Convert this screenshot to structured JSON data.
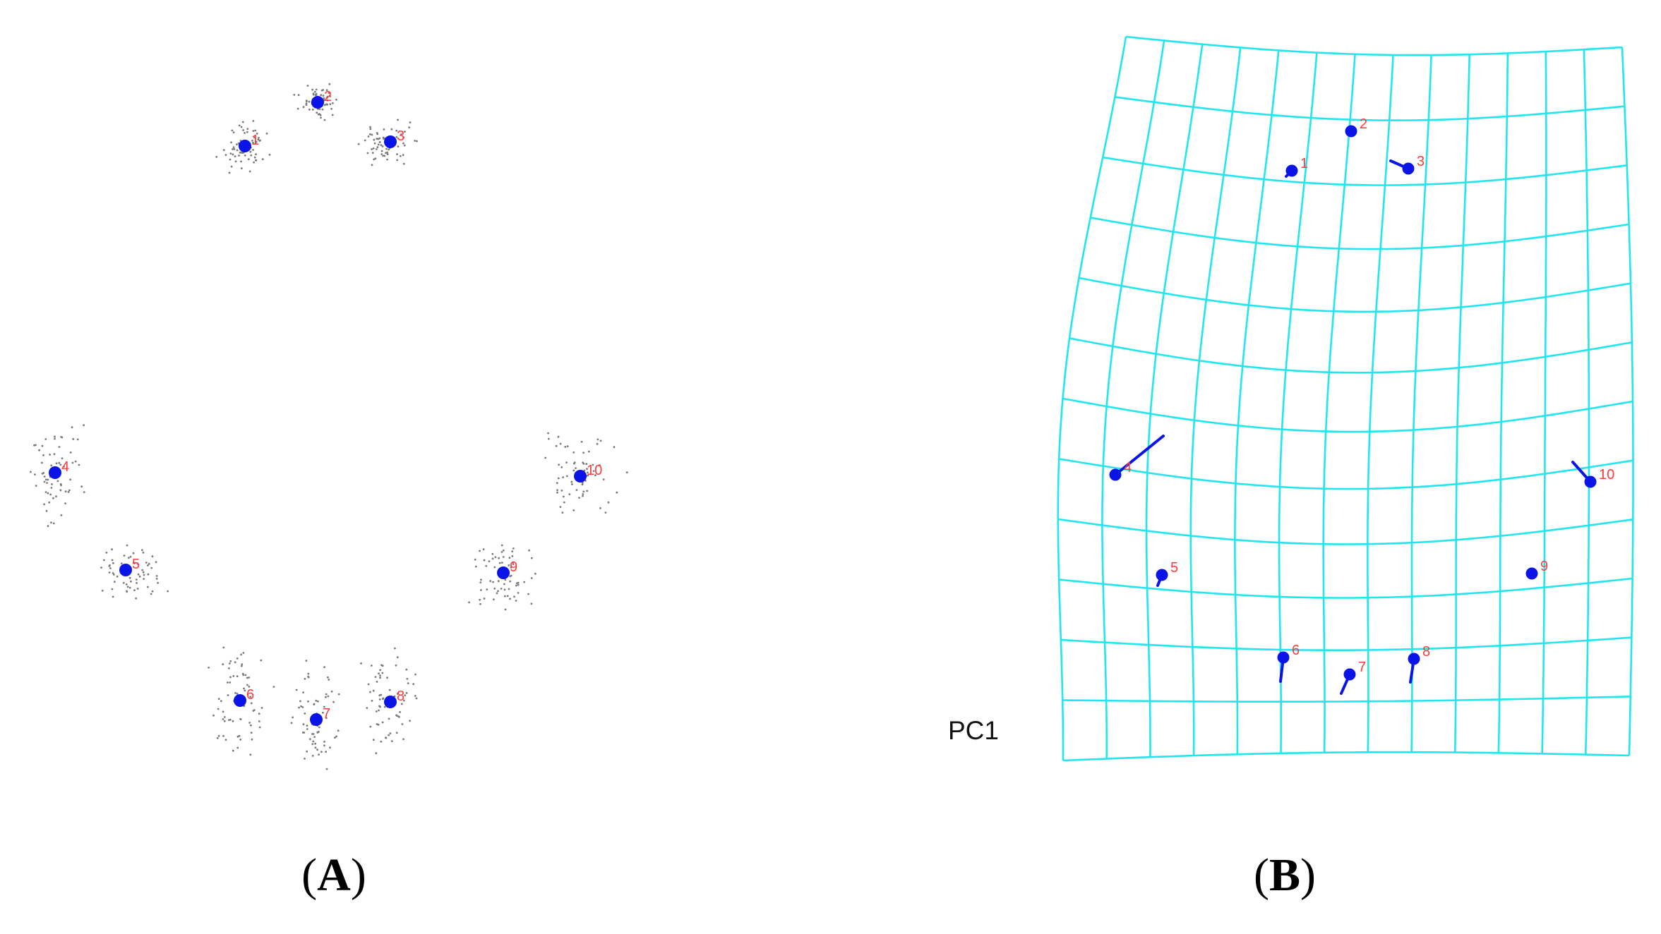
{
  "colors": {
    "landmark": "#0a14e6",
    "label": "#ff3b3b",
    "scatter": "#7a7a7a",
    "grid": "#22e6ee",
    "vector": "#0a14e6",
    "text": "#000000"
  },
  "panel_a": {
    "caption_paren_open": "(",
    "caption_letter": "A",
    "caption_paren_close": ")",
    "landmarks": [
      {
        "label": "1"
      },
      {
        "label": "2"
      },
      {
        "label": "3"
      },
      {
        "label": "4"
      },
      {
        "label": "5"
      },
      {
        "label": "6"
      },
      {
        "label": "7"
      },
      {
        "label": "8"
      },
      {
        "label": "9"
      },
      {
        "label": "10"
      }
    ]
  },
  "panel_b": {
    "caption_paren_open": "(",
    "caption_letter": "B",
    "caption_paren_close": ")",
    "pc_label": "PC1",
    "landmarks": [
      {
        "label": "1"
      },
      {
        "label": "2"
      },
      {
        "label": "3"
      },
      {
        "label": "4"
      },
      {
        "label": "5"
      },
      {
        "label": "6"
      },
      {
        "label": "7"
      },
      {
        "label": "8"
      },
      {
        "label": "9"
      },
      {
        "label": "10"
      }
    ]
  }
}
